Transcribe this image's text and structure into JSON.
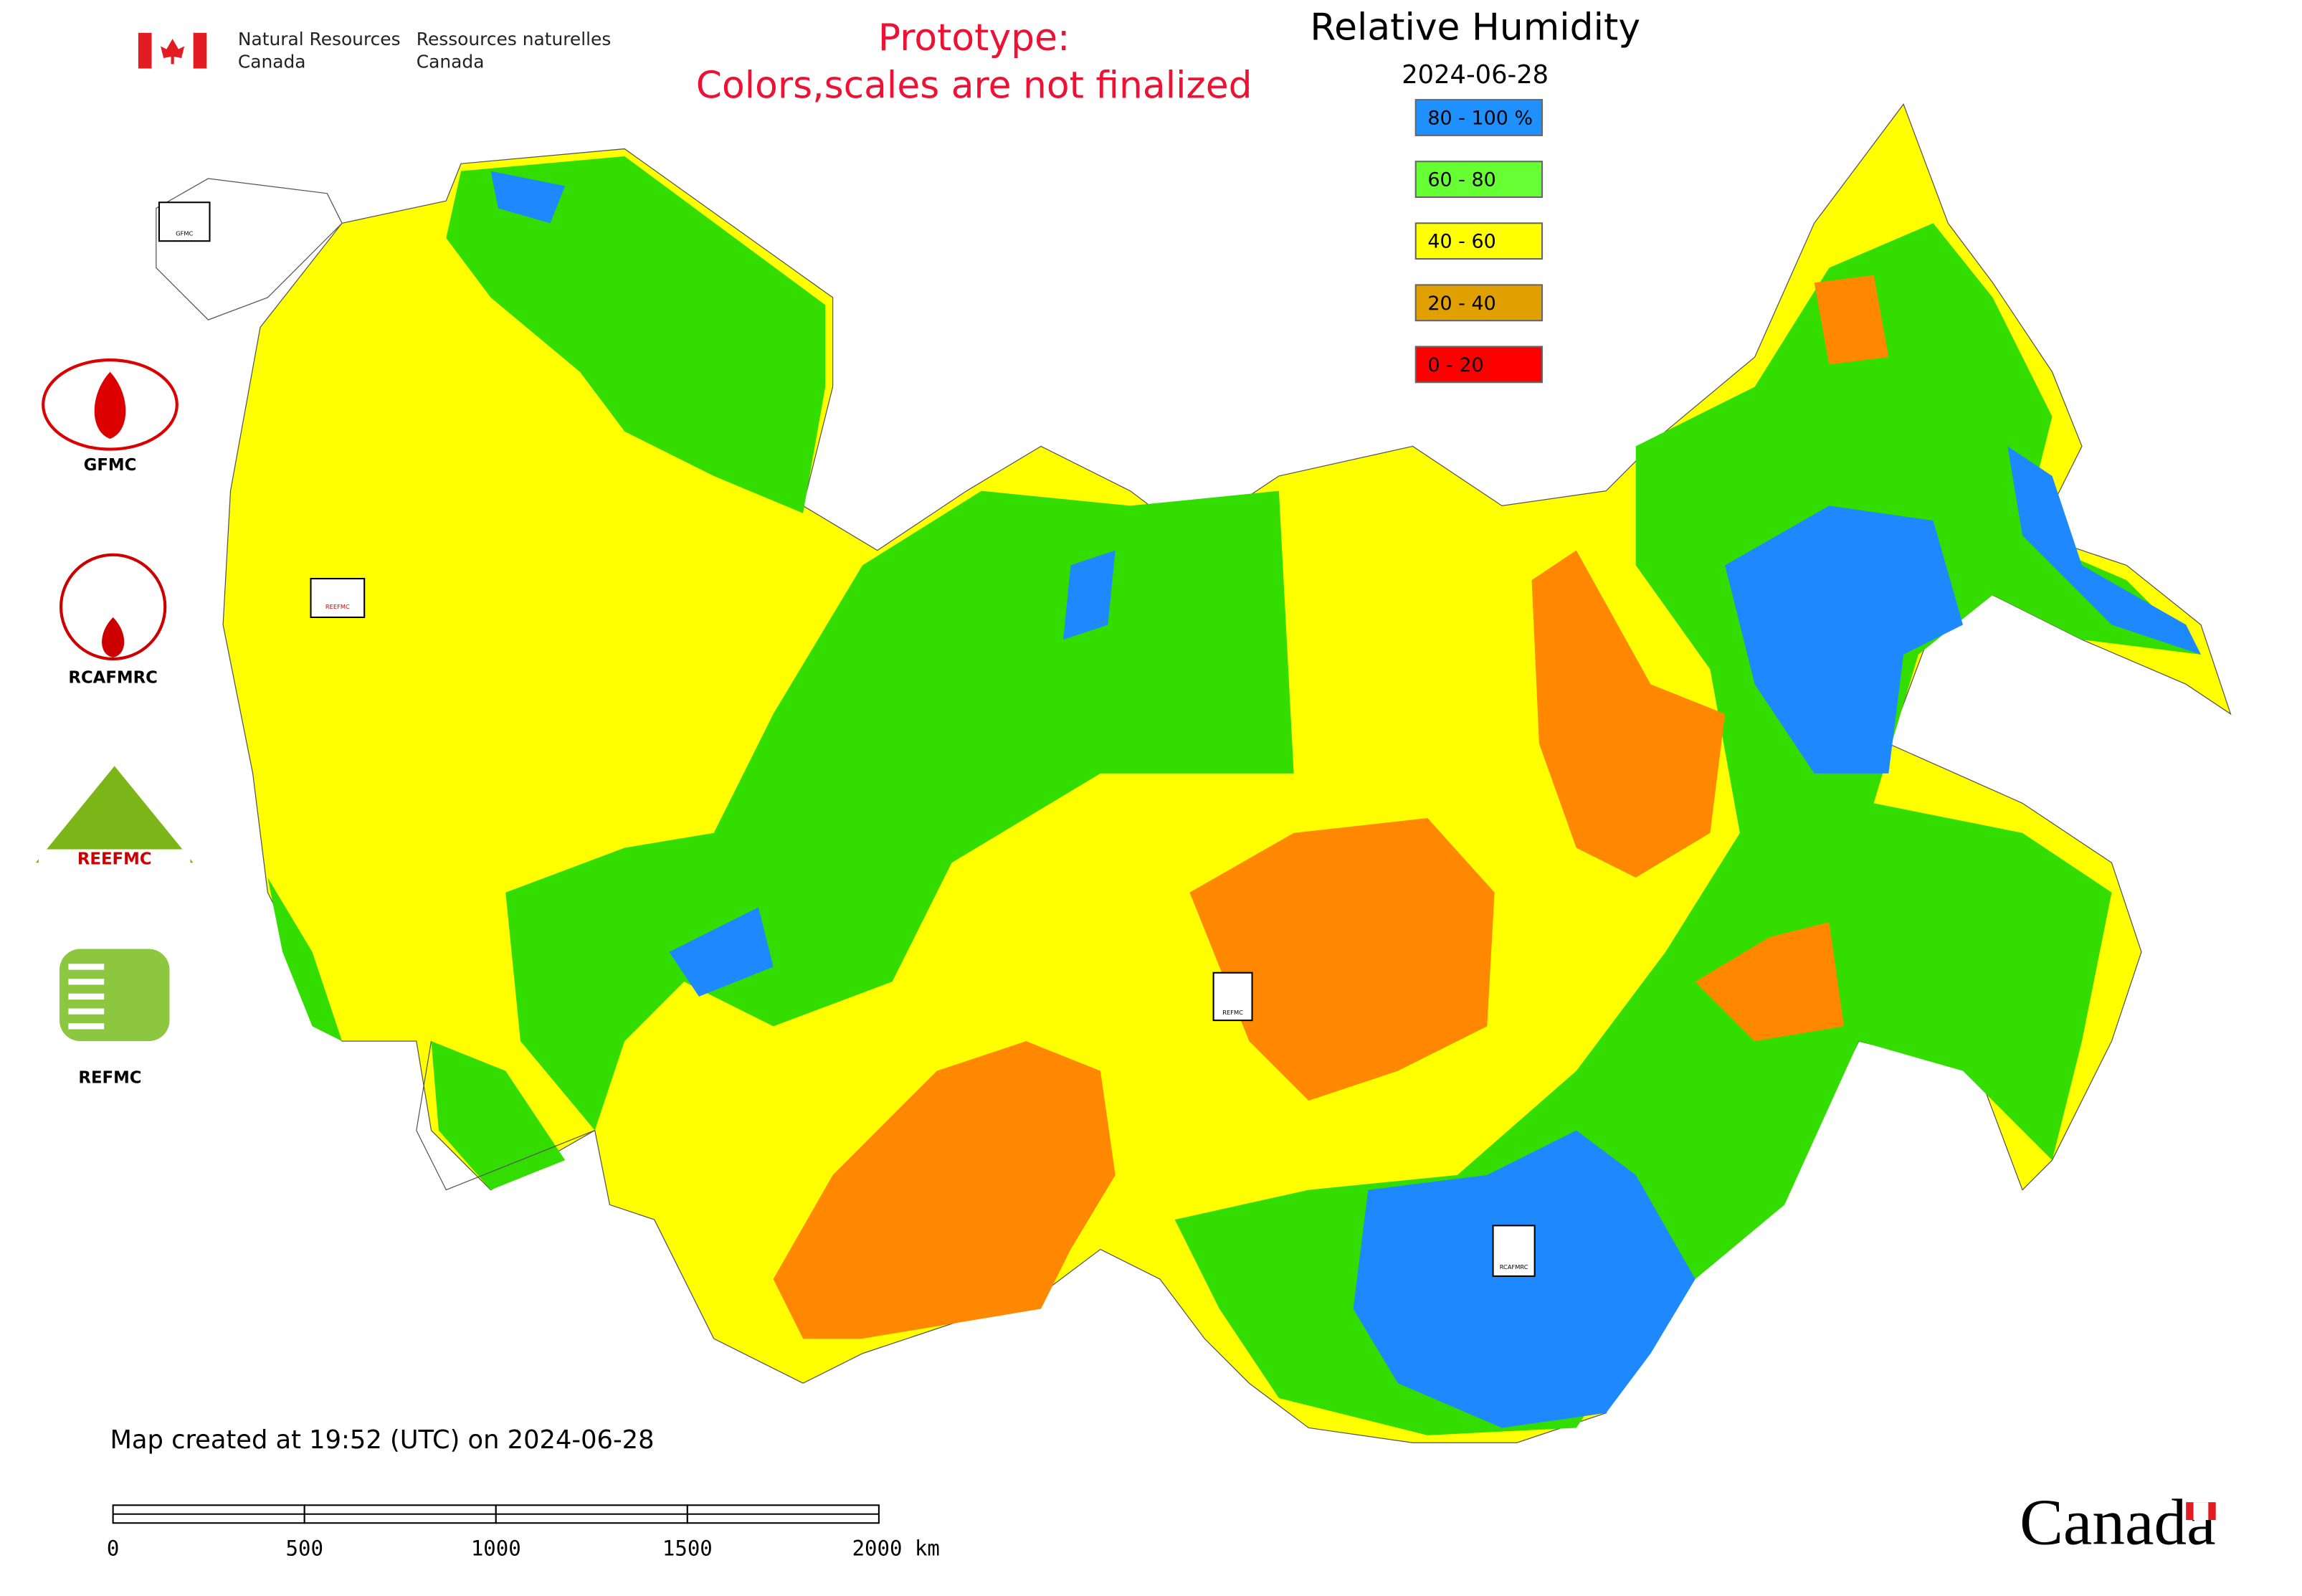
{
  "header": {
    "department_en": [
      "Natural Resources",
      "Canada"
    ],
    "department_fr": [
      "Ressources naturelles",
      "Canada"
    ],
    "notice": [
      "Prototype:",
      "Colors,scales are not finalized"
    ]
  },
  "title": "Relative Humidity",
  "date": "2024-06-28",
  "legend": [
    {
      "label": "80 - 100 %",
      "color": "#1e90ff"
    },
    {
      "label": "60 - 80",
      "color": "#66ff33"
    },
    {
      "label": "40 - 60",
      "color": "#ffff00"
    },
    {
      "label": "20 - 40",
      "color": "#e0a000"
    },
    {
      "label": "0 - 20",
      "color": "#ff0000"
    }
  ],
  "logos": {
    "gfmc": "GFMC",
    "rcafmrc": "RCAFMRC",
    "reefmc": "REEFMC",
    "refmc": "REFMC"
  },
  "map_labels": {
    "gfmc": "GFMC",
    "rcafmrc": "RCAFMRC",
    "reefmc": "REEFMC",
    "refmc": "REFMC"
  },
  "footer": {
    "created": "Map created at 19:52 (UTC) on 2024-06-28",
    "scale_labels": [
      "0",
      "500",
      "1000",
      "1500",
      "2000 km"
    ],
    "wordmark": "Canada"
  }
}
